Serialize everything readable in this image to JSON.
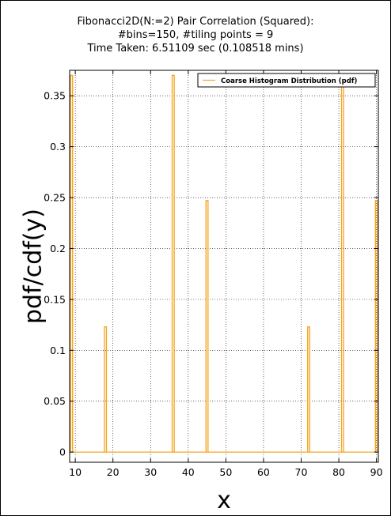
{
  "chart_data": {
    "type": "bar",
    "title": [
      "Fibonacci2D(N:=2) Pair Correlation (Squared):",
      "#bins=150, #tiling points = 9",
      "Time Taken: 6.51109 sec (0.108518 mins)"
    ],
    "xlabel": "x",
    "ylabel": "pdf/cdf(y)",
    "xlim": [
      8.5,
      90.5
    ],
    "ylim": [
      -0.01,
      0.375
    ],
    "xticks": [
      10,
      20,
      30,
      40,
      50,
      60,
      70,
      80,
      90
    ],
    "yticks": [
      0,
      0.05,
      0.1,
      0.15,
      0.2,
      0.25,
      0.3,
      0.35
    ],
    "ytick_labels": [
      "0",
      "0.05",
      "0.1",
      "0.15",
      "0.2",
      "0.25",
      "0.3",
      "0.35"
    ],
    "grid": true,
    "legend_position": "top-right",
    "series": [
      {
        "name": "Coarse Histogram Distribution (pdf)",
        "color": "#f5a623",
        "bin_width": 0.54,
        "x": [
          9.0,
          18.0,
          36.0,
          45.0,
          72.0,
          81.0,
          90.0
        ],
        "values": [
          0.37,
          0.123,
          0.37,
          0.247,
          0.123,
          0.37,
          0.247
        ]
      }
    ]
  }
}
